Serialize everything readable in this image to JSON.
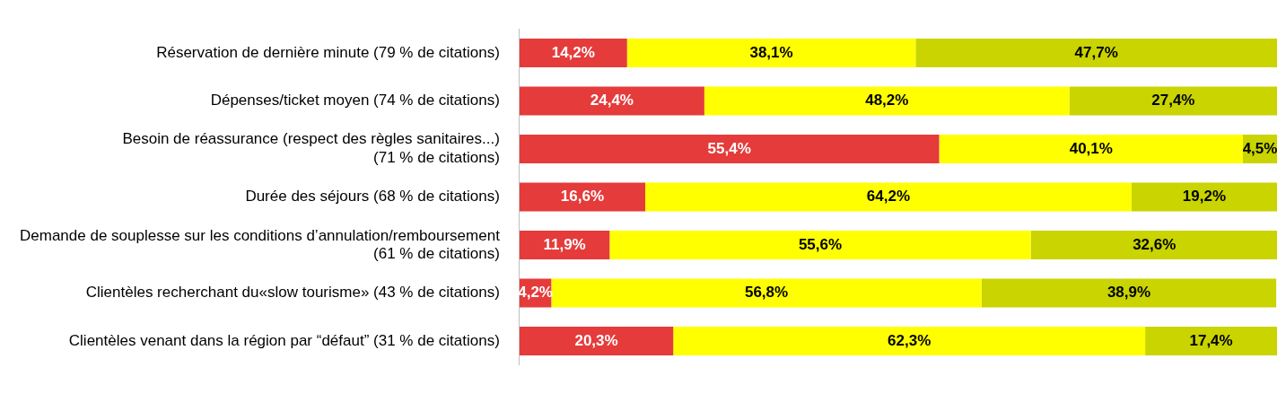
{
  "chart_data": {
    "type": "bar",
    "orientation": "horizontal",
    "stacked": true,
    "legend": false,
    "tick_labels": "y",
    "xlim": [
      0,
      100
    ],
    "categories": [
      "Réservation de dernière minute (79 % de citations)",
      "Dépenses/ticket moyen (74 % de citations)",
      "Besoin de réassurance (respect des règles sanitaires...)\n(71 % de citations)",
      "Durée des séjours (68 % de citations)",
      "Demande de souplesse sur les conditions d’annulation/remboursement\n(61 % de citations)",
      "Clientèles recherchant du«slow tourisme» (43 % de citations)",
      "Clientèles venant dans la région par “défaut” (31 % de citations)"
    ],
    "series": [
      {
        "color": "#e53b3b",
        "values": [
          14.2,
          24.4,
          55.4,
          16.6,
          11.9,
          4.2,
          20.3
        ],
        "value_labels": [
          "14,2%",
          "24,4%",
          "55,4%",
          "16,6%",
          "11,9%",
          "4,2%",
          "20,3%"
        ]
      },
      {
        "color": "#ffff00",
        "values": [
          38.1,
          48.2,
          40.1,
          64.2,
          55.6,
          56.8,
          62.3
        ],
        "value_labels": [
          "38,1%",
          "48,2%",
          "40,1%",
          "64,2%",
          "55,6%",
          "56,8%",
          "62,3%"
        ]
      },
      {
        "color": "#c9d400",
        "values": [
          47.7,
          27.4,
          4.5,
          19.2,
          32.6,
          38.9,
          17.4
        ],
        "value_labels": [
          "47,7%",
          "27,4%",
          "4,5%",
          "19,2%",
          "32,6%",
          "38,9%",
          "17,4%"
        ]
      }
    ]
  }
}
